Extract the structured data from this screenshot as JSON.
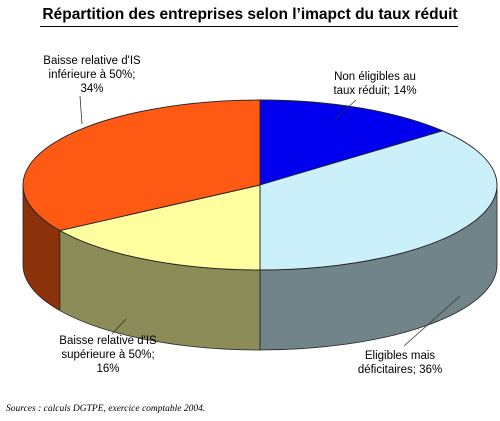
{
  "chart_data": {
    "type": "pie",
    "title": "Répartition des entreprises selon l’imapct du taux réduit",
    "slices": [
      {
        "label_lines": [
          "Non éligibles au",
          "taux réduit; 14%"
        ],
        "value": 14,
        "color": "#0000ee"
      },
      {
        "label_lines": [
          "Eligibles mais",
          "déficitaires; 36%"
        ],
        "value": 36,
        "color": "#ccf0fa"
      },
      {
        "label_lines": [
          "Baisse relative d'IS",
          "supérieure à 50%;",
          "16%"
        ],
        "value": 16,
        "color": "#ffffa0"
      },
      {
        "label_lines": [
          "Baisse relative d'IS",
          "inférieure à 50%;",
          "34%"
        ],
        "value": 34,
        "color": "#ff5a14"
      }
    ]
  },
  "source": "Sources : calculs DGTPE, exercice comptable 2004."
}
